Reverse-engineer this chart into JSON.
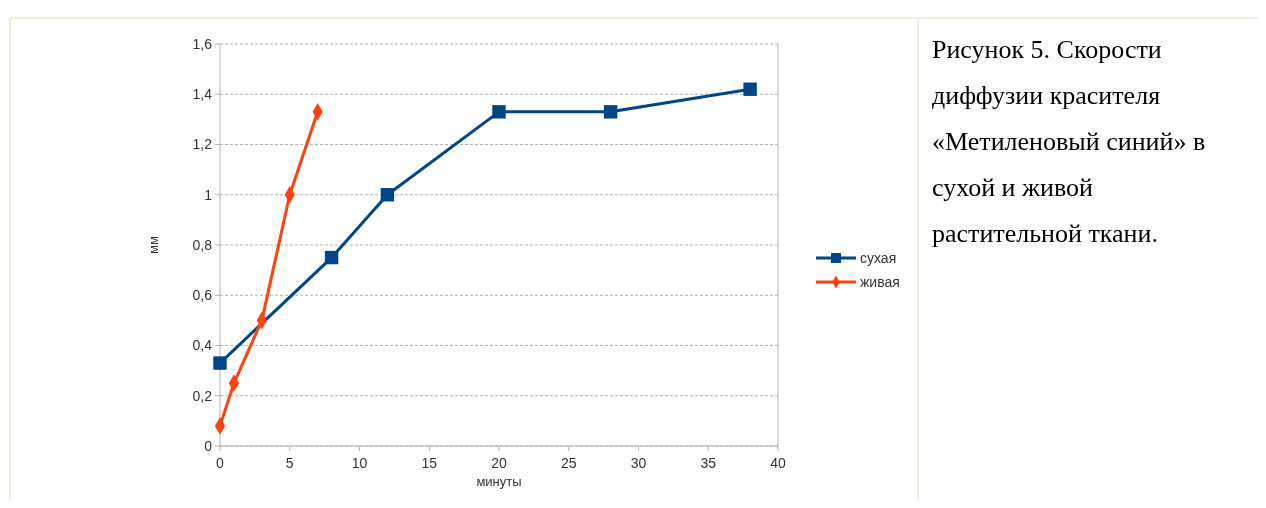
{
  "chart_data": {
    "type": "line",
    "xlabel": "минуты",
    "ylabel": "мм",
    "xlim": [
      0,
      40
    ],
    "xticks": [
      0,
      5,
      10,
      15,
      20,
      25,
      30,
      35,
      40
    ],
    "ylim": [
      0,
      1.6
    ],
    "yticks": [
      {
        "value": 0,
        "label": "0"
      },
      {
        "value": 0.2,
        "label": "0,2"
      },
      {
        "value": 0.4,
        "label": "0,4"
      },
      {
        "value": 0.6,
        "label": "0,6"
      },
      {
        "value": 0.8,
        "label": "0,8"
      },
      {
        "value": 1,
        "label": "1"
      },
      {
        "value": 1.2,
        "label": "1,2"
      },
      {
        "value": 1.4,
        "label": "1,4"
      },
      {
        "value": 1.6,
        "label": "1,6"
      }
    ],
    "grid": "y",
    "legend": "right",
    "series": [
      {
        "name": "сухая",
        "color": "#004586",
        "marker": "square",
        "x": [
          0,
          8,
          12,
          20,
          28,
          38
        ],
        "values": [
          0.33,
          0.75,
          1,
          1.33,
          1.33,
          1.42
        ]
      },
      {
        "name": "живая",
        "color": "#ff420e",
        "marker": "diamond",
        "x": [
          0,
          1,
          3,
          5,
          7
        ],
        "values": [
          0.08,
          0.25,
          0.5,
          1,
          1.33
        ]
      }
    ],
    "annotations": [
      "Рисунок 5. Скорости диффузии красителя «Метиленовый синий» в сухой и живой растительной ткани."
    ]
  }
}
